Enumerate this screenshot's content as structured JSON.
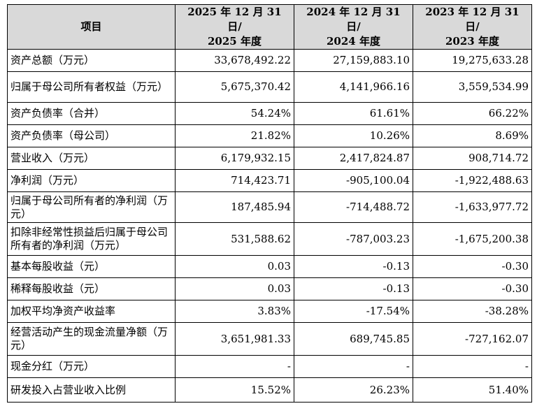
{
  "table": {
    "headers": [
      {
        "line1": "项目",
        "line2": ""
      },
      {
        "line1": "2025 年 12 月 31 日/",
        "line2": "2025 年度"
      },
      {
        "line1": "2024 年 12 月 31 日/",
        "line2": "2024 年度"
      },
      {
        "line1": "2023 年 12 月 31 日/",
        "line2": "2023 年度"
      }
    ],
    "rows": [
      {
        "label": "资产总额（万元）",
        "v2025": "33,678,492.22",
        "v2024": "27,159,883.10",
        "v2023": "19,275,633.28"
      },
      {
        "label": "归属于母公司所有者权益（万元）",
        "v2025": "5,675,370.42",
        "v2024": "4,141,966.16",
        "v2023": "3,559,534.99"
      },
      {
        "label": "资产负债率（合并）",
        "v2025": "54.24%",
        "v2024": "61.61%",
        "v2023": "66.22%"
      },
      {
        "label": "资产负债率（母公司）",
        "v2025": "21.82%",
        "v2024": "10.26%",
        "v2023": "8.69%"
      },
      {
        "label": "营业收入（万元）",
        "v2025": "6,179,932.15",
        "v2024": "2,417,824.87",
        "v2023": "908,714.72"
      },
      {
        "label": "净利润（万元）",
        "v2025": "714,423.71",
        "v2024": "-905,100.04",
        "v2023": "-1,922,488.63"
      },
      {
        "label": "归属于母公司所有者的净利润（万元）",
        "v2025": "187,485.94",
        "v2024": "-714,488.72",
        "v2023": "-1,633,977.72"
      },
      {
        "label": "扣除非经常性损益后归属于母公司所有者的净利润（万元）",
        "v2025": "531,588.62",
        "v2024": "-787,003.23",
        "v2023": "-1,675,200.38"
      },
      {
        "label": "基本每股收益（元）",
        "v2025": "0.03",
        "v2024": "-0.13",
        "v2023": "-0.30"
      },
      {
        "label": "稀释每股收益（元）",
        "v2025": "0.03",
        "v2024": "-0.13",
        "v2023": "-0.30"
      },
      {
        "label": "加权平均净资产收益率",
        "v2025": "3.83%",
        "v2024": "-17.54%",
        "v2023": "-38.28%"
      },
      {
        "label": "经营活动产生的现金流量净额（万元）",
        "v2025": "3,651,981.33",
        "v2024": "689,745.85",
        "v2023": "-727,162.07"
      },
      {
        "label": "现金分红（万元）",
        "v2025": "-",
        "v2024": "-",
        "v2023": "-"
      },
      {
        "label": "研发投入占营业收入比例",
        "v2025": "15.52%",
        "v2024": "26.23%",
        "v2023": "51.40%"
      }
    ]
  }
}
